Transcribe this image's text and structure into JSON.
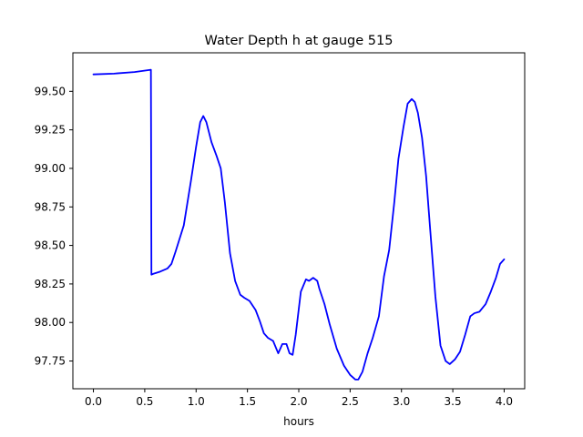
{
  "chart_data": {
    "type": "line",
    "title": "Water Depth h at gauge 515",
    "xlabel": "hours",
    "ylabel": "",
    "xlim": [
      -0.2,
      4.2
    ],
    "ylim": [
      97.57,
      99.75
    ],
    "xticks": [
      0.0,
      0.5,
      1.0,
      1.5,
      2.0,
      2.5,
      3.0,
      3.5,
      4.0
    ],
    "xtick_labels": [
      "0.0",
      "0.5",
      "1.0",
      "1.5",
      "2.0",
      "2.5",
      "3.0",
      "3.5",
      "4.0"
    ],
    "yticks": [
      97.75,
      98.0,
      98.25,
      98.5,
      98.75,
      99.0,
      99.25,
      99.5
    ],
    "ytick_labels": [
      "97.75",
      "98.00",
      "98.25",
      "98.50",
      "98.75",
      "99.00",
      "99.25",
      "99.50"
    ],
    "grid": false,
    "series": [
      {
        "color": "#0000ff",
        "x": [
          0.0,
          0.2,
          0.4,
          0.56,
          0.565,
          0.58,
          0.65,
          0.72,
          0.76,
          0.8,
          0.88,
          0.95,
          1.0,
          1.04,
          1.07,
          1.1,
          1.15,
          1.2,
          1.24,
          1.28,
          1.33,
          1.38,
          1.43,
          1.47,
          1.52,
          1.58,
          1.62,
          1.66,
          1.7,
          1.75,
          1.8,
          1.84,
          1.88,
          1.91,
          1.94,
          1.97,
          2.02,
          2.07,
          2.1,
          2.14,
          2.18,
          2.2,
          2.25,
          2.3,
          2.37,
          2.44,
          2.5,
          2.55,
          2.58,
          2.62,
          2.67,
          2.72,
          2.78,
          2.83,
          2.88,
          2.93,
          2.97,
          3.02,
          3.06,
          3.1,
          3.13,
          3.16,
          3.2,
          3.24,
          3.28,
          3.33,
          3.38,
          3.43,
          3.47,
          3.52,
          3.57,
          3.62,
          3.67,
          3.71,
          3.76,
          3.82,
          3.87,
          3.92,
          3.96,
          4.0
        ],
        "y": [
          99.61,
          99.615,
          99.625,
          99.64,
          98.31,
          98.315,
          98.33,
          98.35,
          98.38,
          98.46,
          98.63,
          98.92,
          99.14,
          99.3,
          99.34,
          99.3,
          99.17,
          99.08,
          99.0,
          98.78,
          98.45,
          98.27,
          98.18,
          98.16,
          98.14,
          98.08,
          98.01,
          97.93,
          97.9,
          97.88,
          97.8,
          97.86,
          97.86,
          97.8,
          97.79,
          97.92,
          98.2,
          98.28,
          98.27,
          98.29,
          98.27,
          98.22,
          98.12,
          97.99,
          97.83,
          97.72,
          97.66,
          97.63,
          97.63,
          97.68,
          97.8,
          97.9,
          98.04,
          98.3,
          98.47,
          98.78,
          99.06,
          99.27,
          99.42,
          99.45,
          99.43,
          99.36,
          99.2,
          98.95,
          98.6,
          98.17,
          97.85,
          97.75,
          97.73,
          97.76,
          97.81,
          97.92,
          98.04,
          98.06,
          98.07,
          98.12,
          98.2,
          98.29,
          98.38,
          98.41
        ]
      }
    ]
  }
}
